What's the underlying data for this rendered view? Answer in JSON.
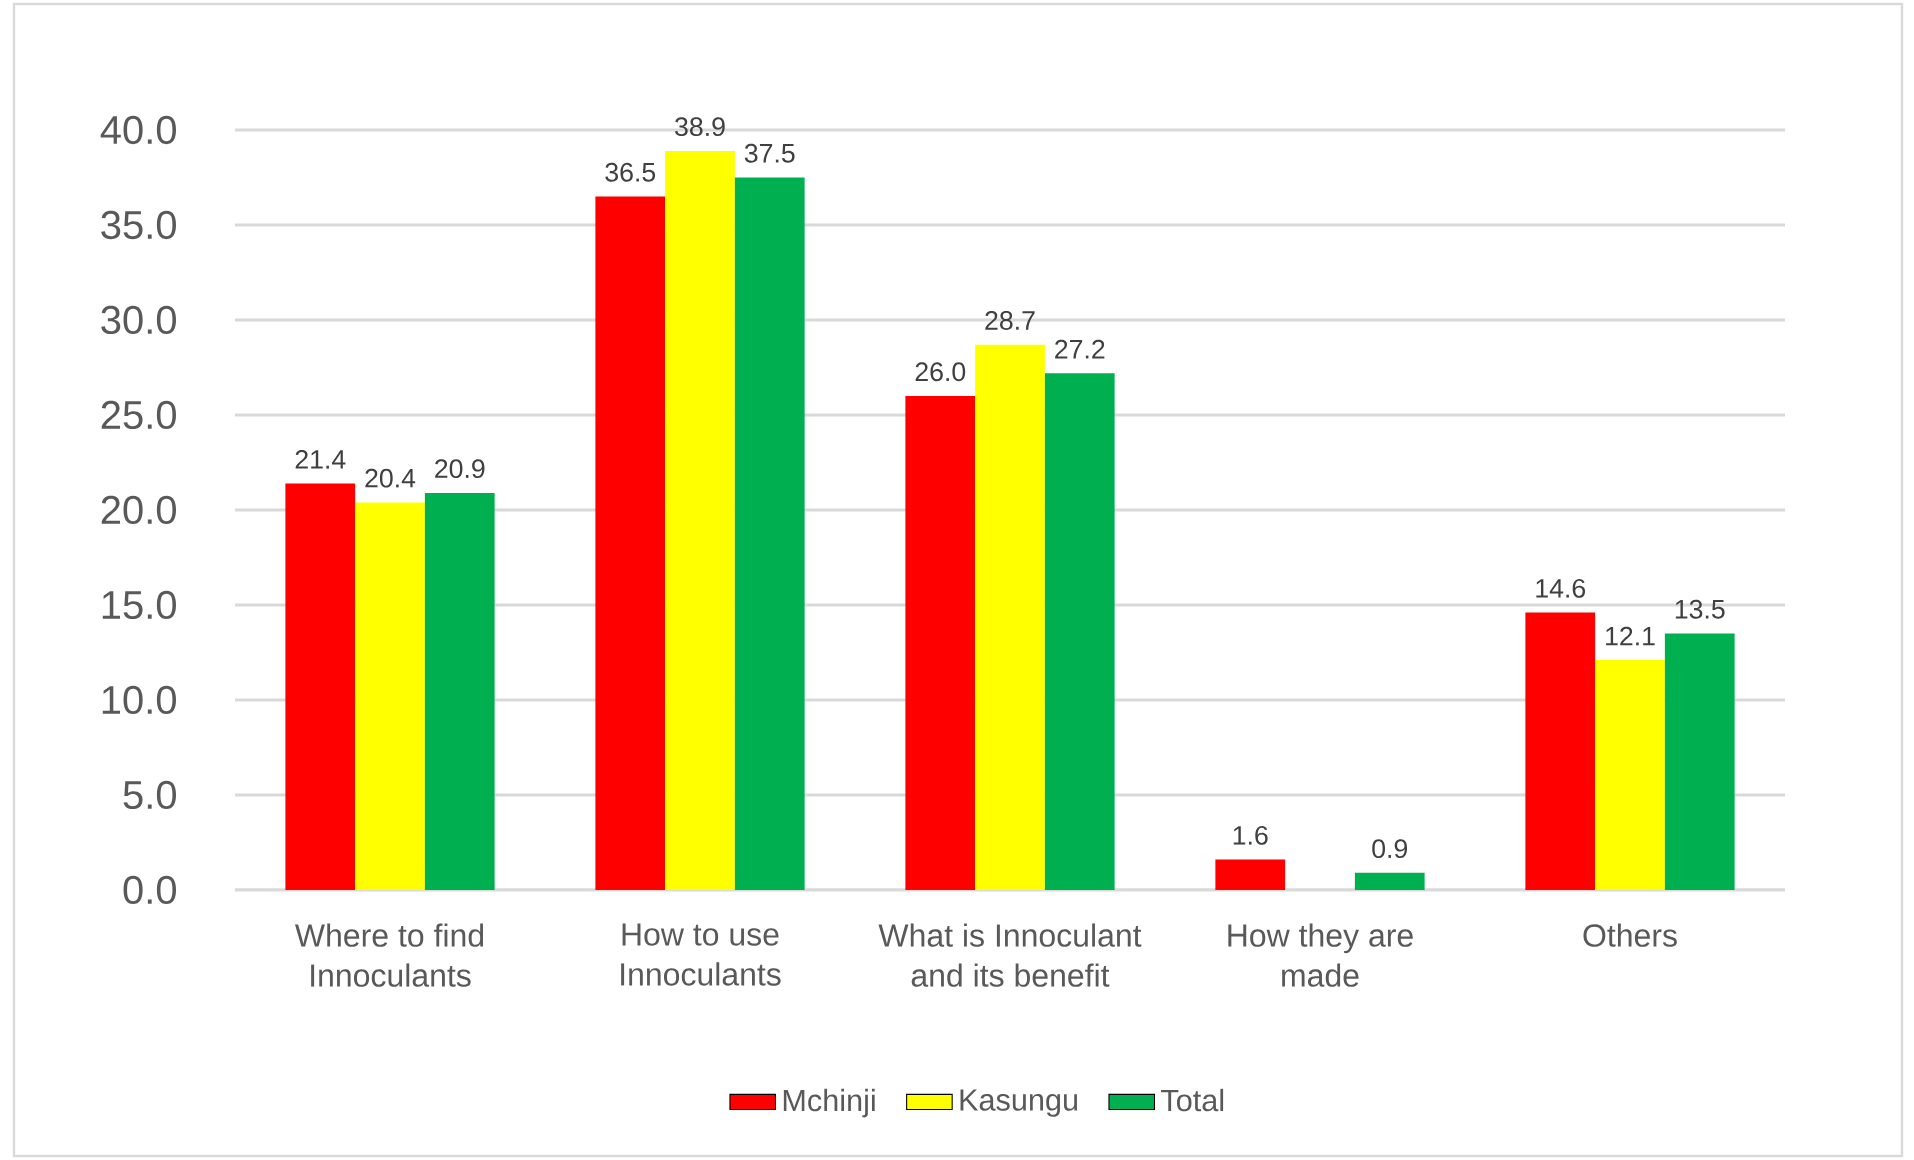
{
  "chart_data": {
    "type": "bar",
    "categories": [
      "Where to find Innoculants",
      "How to use Innoculants",
      "What is Innoculant and its benefit",
      "How they are made",
      "Others"
    ],
    "series": [
      {
        "name": "Mchinji",
        "color": "#ff0000",
        "values": [
          21.4,
          36.5,
          26.0,
          1.6,
          14.6
        ],
        "value_labels": [
          "21.4",
          "36.5",
          "26.0",
          "1.6",
          "14.6"
        ]
      },
      {
        "name": "Kasungu",
        "color": "#ffff00",
        "values": [
          20.4,
          38.9,
          28.7,
          null,
          12.1
        ],
        "value_labels": [
          "20.4",
          "38.9",
          "28.7",
          null,
          "12.1"
        ]
      },
      {
        "name": "Total",
        "color": "#00b050",
        "values": [
          20.9,
          37.5,
          27.2,
          0.9,
          13.5
        ],
        "value_labels": [
          "20.9",
          "37.5",
          "27.2",
          "0.9",
          "13.5"
        ]
      }
    ],
    "ylim": [
      0,
      40
    ],
    "yticks": [
      {
        "value": 0,
        "label": "0.0"
      },
      {
        "value": 5,
        "label": "5.0"
      },
      {
        "value": 10,
        "label": "10.0"
      },
      {
        "value": 15,
        "label": "15.0"
      },
      {
        "value": 20,
        "label": "20.0"
      },
      {
        "value": 25,
        "label": "25.0"
      },
      {
        "value": 30,
        "label": "30.0"
      },
      {
        "value": 35,
        "label": "35.0"
      },
      {
        "value": 40,
        "label": "40.0"
      }
    ],
    "grid": "y",
    "legend": "bottom"
  }
}
